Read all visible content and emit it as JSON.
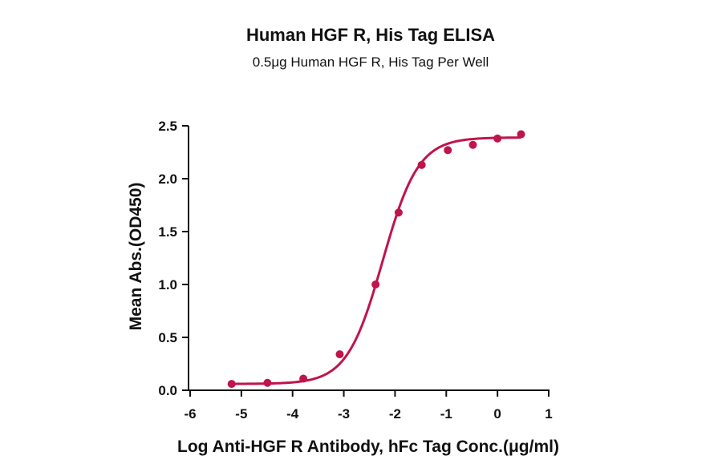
{
  "chart_data": {
    "type": "scatter",
    "title": "Human HGF R, His Tag ELISA",
    "subtitle": "0.5μg Human HGF R, His Tag Per Well",
    "xlabel": "Log Anti-HGF R Antibody, hFc Tag Conc.(μg/ml)",
    "ylabel": "Mean Abs.(OD450)",
    "xlim": [
      -6,
      1
    ],
    "ylim": [
      0,
      2.5
    ],
    "x_ticks": [
      -6,
      -5,
      -4,
      -3,
      -2,
      -1,
      0,
      1
    ],
    "x_tick_labels": [
      "-6",
      "-5",
      "-4",
      "-3",
      "-2",
      "-1",
      "0",
      "1"
    ],
    "y_ticks": [
      0,
      0.5,
      1.0,
      1.5,
      2.0,
      2.5
    ],
    "y_tick_labels": [
      "0.0",
      "0.5",
      "1.0",
      "1.5",
      "2.0",
      "2.5"
    ],
    "grid": false,
    "series": [
      {
        "color": "#c0144a",
        "points": [
          {
            "x": -5.19,
            "y": 0.06
          },
          {
            "x": -4.49,
            "y": 0.07
          },
          {
            "x": -3.79,
            "y": 0.11
          },
          {
            "x": -3.08,
            "y": 0.34
          },
          {
            "x": -2.38,
            "y": 1.0
          },
          {
            "x": -1.93,
            "y": 1.68
          },
          {
            "x": -1.48,
            "y": 2.13
          },
          {
            "x": -0.97,
            "y": 2.27
          },
          {
            "x": -0.48,
            "y": 2.32
          },
          {
            "x": 0.0,
            "y": 2.38
          },
          {
            "x": 0.46,
            "y": 2.42
          }
        ],
        "fit": {
          "bottom": 0.06,
          "top": 2.39,
          "logEC50": -2.24,
          "hill": 1.25
        }
      }
    ]
  }
}
